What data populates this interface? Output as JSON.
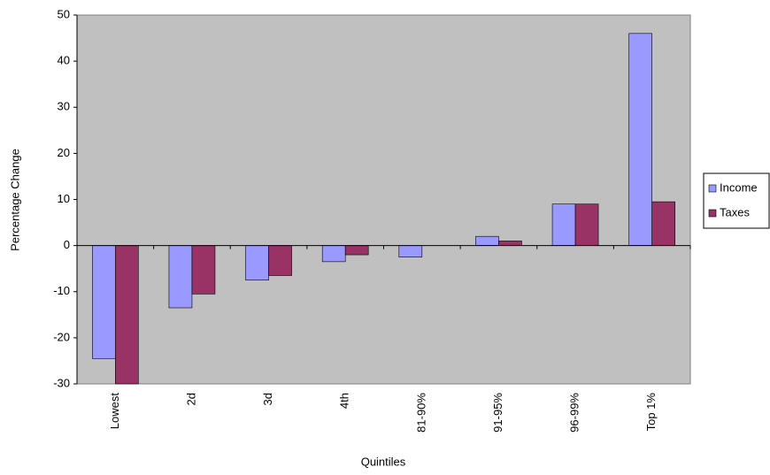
{
  "chart_data": {
    "type": "bar",
    "categories": [
      "Lowest",
      "2d",
      "3d",
      "4th",
      "81-90%",
      "91-95%",
      "96-99%",
      "Top 1%"
    ],
    "series": [
      {
        "name": "Income",
        "color": "#9999ff",
        "values": [
          -24.5,
          -13.5,
          -7.5,
          -3.5,
          -2.5,
          2,
          9,
          46
        ]
      },
      {
        "name": "Taxes",
        "color": "#993366",
        "values": [
          -30,
          -10.5,
          -6.5,
          -2,
          0,
          1,
          9,
          9.5
        ]
      }
    ],
    "x_label": "Quintiles",
    "y_label": "Percentage Change",
    "ylim": [
      -30,
      50
    ],
    "yticks": [
      -30,
      -20,
      -10,
      0,
      10,
      20,
      30,
      40,
      50
    ],
    "plot_background": "#c0c0c0",
    "legend": "right"
  }
}
